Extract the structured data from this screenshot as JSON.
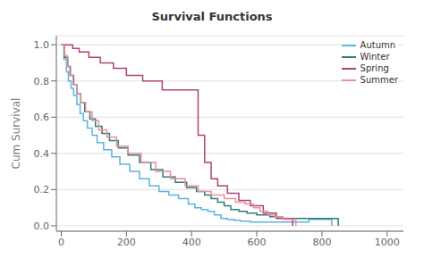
{
  "chart_data": {
    "type": "step",
    "title": "Survival Functions",
    "ylabel": "Cum Survival",
    "xlim": [
      -15,
      1050
    ],
    "ylim": [
      -0.03,
      1.05
    ],
    "xticks": [
      0,
      200,
      400,
      600,
      800,
      1000
    ],
    "yticks": [
      {
        "value": 0.0,
        "label": "0.0"
      },
      0.2,
      0.4,
      0.6,
      0.8,
      {
        "value": 1.0,
        "label": "1.0"
      }
    ],
    "grid": "y",
    "legend": "upper right",
    "series": [
      {
        "name": "Autumn",
        "color": "#5ab4e0",
        "x": [
          0,
          8,
          16,
          22,
          30,
          38,
          48,
          58,
          68,
          80,
          95,
          110,
          130,
          155,
          180,
          210,
          240,
          270,
          300,
          330,
          360,
          390,
          410,
          430,
          450,
          470,
          490,
          510,
          530,
          550,
          580,
          610,
          650,
          700,
          760,
          830,
          830
        ],
        "values": [
          1.0,
          0.92,
          0.85,
          0.8,
          0.76,
          0.72,
          0.67,
          0.62,
          0.58,
          0.54,
          0.5,
          0.46,
          0.42,
          0.38,
          0.34,
          0.3,
          0.26,
          0.22,
          0.19,
          0.17,
          0.15,
          0.12,
          0.1,
          0.09,
          0.08,
          0.06,
          0.04,
          0.035,
          0.03,
          0.025,
          0.02,
          0.02,
          0.02,
          0.02,
          0.035,
          0.035,
          0.0
        ]
      },
      {
        "name": "Winter",
        "color": "#2e7d7a",
        "x": [
          0,
          10,
          20,
          28,
          38,
          48,
          60,
          72,
          88,
          105,
          125,
          148,
          175,
          205,
          240,
          275,
          312,
          350,
          385,
          415,
          440,
          460,
          480,
          500,
          520,
          545,
          570,
          600,
          640,
          680,
          730,
          790,
          850,
          850
        ],
        "values": [
          1.0,
          0.93,
          0.88,
          0.83,
          0.78,
          0.73,
          0.68,
          0.63,
          0.59,
          0.55,
          0.51,
          0.47,
          0.43,
          0.39,
          0.35,
          0.31,
          0.27,
          0.24,
          0.21,
          0.19,
          0.17,
          0.15,
          0.13,
          0.11,
          0.09,
          0.08,
          0.07,
          0.06,
          0.05,
          0.04,
          0.04,
          0.04,
          0.04,
          0.0
        ]
      },
      {
        "name": "Spring",
        "color": "#b0427a",
        "x": [
          0,
          15,
          35,
          55,
          85,
          120,
          160,
          200,
          250,
          310,
          360,
          400,
          420,
          440,
          460,
          480,
          510,
          545,
          580,
          620,
          660,
          710,
          710
        ],
        "values": [
          1.0,
          1.0,
          0.98,
          0.96,
          0.93,
          0.9,
          0.87,
          0.83,
          0.8,
          0.75,
          0.75,
          0.75,
          0.5,
          0.35,
          0.26,
          0.22,
          0.18,
          0.14,
          0.11,
          0.07,
          0.04,
          0.04,
          0.0
        ]
      },
      {
        "name": "Summer",
        "color": "#e8909a",
        "x": [
          0,
          10,
          18,
          26,
          36,
          48,
          60,
          75,
          95,
          115,
          140,
          170,
          205,
          245,
          290,
          335,
          380,
          420,
          460,
          500,
          535,
          565,
          590,
          610,
          635,
          655,
          680,
          720,
          720
        ],
        "values": [
          1.0,
          0.94,
          0.88,
          0.83,
          0.78,
          0.73,
          0.68,
          0.63,
          0.58,
          0.53,
          0.49,
          0.44,
          0.4,
          0.35,
          0.3,
          0.26,
          0.22,
          0.19,
          0.17,
          0.15,
          0.13,
          0.12,
          0.1,
          0.08,
          0.06,
          0.05,
          0.035,
          0.035,
          0.0
        ]
      }
    ]
  }
}
